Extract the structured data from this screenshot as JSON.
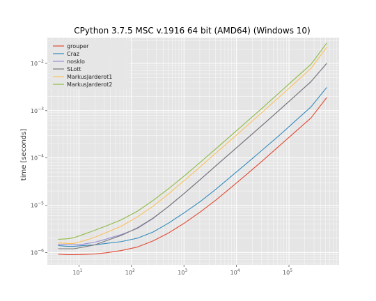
{
  "chart_data": {
    "type": "line",
    "title": "CPython 3.7.5 MSC v.1916 64 bit (AMD64) (Windows 10)",
    "xlabel": "",
    "ylabel": "time [seconds]",
    "xscale": "log",
    "yscale": "log",
    "xlim": [
      2.5,
      900000
    ],
    "ylim": [
      5.5e-07,
      0.035
    ],
    "grid": true,
    "legend_position": "top-left",
    "x_ticks": [
      {
        "value": 10,
        "base": "10",
        "exp": "1"
      },
      {
        "value": 100,
        "base": "10",
        "exp": "2"
      },
      {
        "value": 1000,
        "base": "10",
        "exp": "3"
      },
      {
        "value": 10000,
        "base": "10",
        "exp": "4"
      },
      {
        "value": 100000,
        "base": "10",
        "exp": "5"
      }
    ],
    "y_ticks": [
      {
        "value": 1e-06,
        "base": "10",
        "exp": "−6"
      },
      {
        "value": 1e-05,
        "base": "10",
        "exp": "−5"
      },
      {
        "value": 0.0001,
        "base": "10",
        "exp": "−4"
      },
      {
        "value": 0.001,
        "base": "10",
        "exp": "−3"
      },
      {
        "value": 0.01,
        "base": "10",
        "exp": "−2"
      }
    ],
    "x": [
      4,
      6,
      8,
      12,
      20,
      32,
      64,
      128,
      256,
      512,
      1024,
      2048,
      4096,
      8192,
      16384,
      32768,
      65536,
      131072,
      262144,
      524288
    ],
    "series": [
      {
        "name": "grouper",
        "color": "#e24a33",
        "values": [
          9.2e-07,
          9e-07,
          9e-07,
          9.1e-07,
          9.3e-07,
          9.8e-07,
          1.1e-06,
          1.3e-06,
          1.75e-06,
          2.6e-06,
          4.2e-06,
          7.2e-06,
          1.3e-05,
          2.45e-05,
          4.7e-05,
          9.1e-05,
          0.00018,
          0.000355,
          0.0007,
          0.0019
        ]
      },
      {
        "name": "Craz",
        "color": "#348abd",
        "values": [
          1.4e-06,
          1.35e-06,
          1.35e-06,
          1.4e-06,
          1.45e-06,
          1.55e-06,
          1.7e-06,
          2e-06,
          2.7e-06,
          4.2e-06,
          7e-06,
          1.2e-05,
          2.2e-05,
          4.2e-05,
          8e-05,
          0.000155,
          0.0003,
          0.0006,
          0.0012,
          0.0031
        ]
      },
      {
        "name": "nosklo",
        "color": "#988ed5",
        "values": [
          1.5e-06,
          1.45e-06,
          1.45e-06,
          1.5e-06,
          1.65e-06,
          1.9e-06,
          2.4e-06,
          3.2e-06,
          5.2e-06,
          9.5e-06,
          1.8e-05,
          3.5e-05,
          6.9e-05,
          0.000135,
          0.000265,
          0.00052,
          0.00103,
          0.00205,
          0.0041,
          0.01
        ]
      },
      {
        "name": "SLott",
        "color": "#777777",
        "values": [
          1.2e-06,
          1.2e-06,
          1.2e-06,
          1.3e-06,
          1.45e-06,
          1.75e-06,
          2.3e-06,
          3.3e-06,
          5.3e-06,
          9.5e-06,
          1.8e-05,
          3.5e-05,
          6.9e-05,
          0.000135,
          0.000265,
          0.00052,
          0.00103,
          0.00205,
          0.0041,
          0.01
        ]
      },
      {
        "name": "MarkusJarderot1",
        "color": "#fbc15e",
        "values": [
          1.6e-06,
          1.55e-06,
          1.55e-06,
          1.75e-06,
          2.1e-06,
          2.6e-06,
          3.6e-06,
          5.6e-06,
          9.5e-06,
          1.75e-05,
          3.35e-05,
          6.5e-05,
          0.000128,
          0.00025,
          0.000495,
          0.00098,
          0.00195,
          0.0039,
          0.0078,
          0.022
        ]
      },
      {
        "name": "MarkusJarderot2",
        "color": "#8eba42",
        "values": [
          1.9e-06,
          1.95e-06,
          2.05e-06,
          2.4e-06,
          2.95e-06,
          3.6e-06,
          4.9e-06,
          7.4e-06,
          1.25e-05,
          2.25e-05,
          4.2e-05,
          8.1e-05,
          0.000158,
          0.00031,
          0.00061,
          0.0012,
          0.0024,
          0.0048,
          0.0095,
          0.027
        ]
      }
    ]
  }
}
